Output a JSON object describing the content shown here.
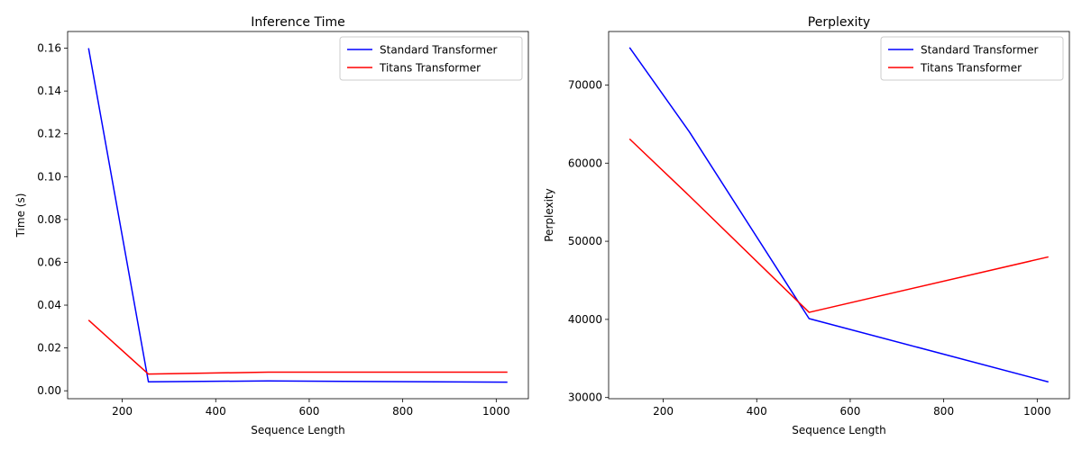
{
  "chart_data": [
    {
      "type": "line",
      "title": "Inference Time",
      "xlabel": "Sequence Length",
      "ylabel": "Time (s)",
      "x": [
        128,
        256,
        512,
        1024
      ],
      "xlim": [
        83.2,
        1068.8
      ],
      "ylim": [
        -0.0037,
        0.1678
      ],
      "xticks": [
        200,
        400,
        600,
        800,
        1000
      ],
      "yticks": [
        0.0,
        0.02,
        0.04,
        0.06,
        0.08,
        0.1,
        0.12,
        0.14,
        0.16
      ],
      "ytick_labels": [
        "0.00",
        "0.02",
        "0.04",
        "0.06",
        "0.08",
        "0.10",
        "0.12",
        "0.14",
        "0.16"
      ],
      "grid": false,
      "legend_position": "top-right",
      "series": [
        {
          "name": "Standard Transformer",
          "color": "#0000ff",
          "values": [
            0.16,
            0.0042,
            0.0046,
            0.004
          ]
        },
        {
          "name": "Titans Transformer",
          "color": "#ff0000",
          "values": [
            0.033,
            0.0078,
            0.0087,
            0.0087
          ]
        }
      ]
    },
    {
      "type": "line",
      "title": "Perplexity",
      "xlabel": "Sequence Length",
      "ylabel": "Perplexity",
      "x": [
        128,
        256,
        512,
        1024
      ],
      "xlim": [
        83.2,
        1068.8
      ],
      "ylim": [
        29850,
        76850
      ],
      "xticks": [
        200,
        400,
        600,
        800,
        1000
      ],
      "yticks": [
        30000,
        40000,
        50000,
        60000,
        70000
      ],
      "ytick_labels": [
        "30000",
        "40000",
        "50000",
        "60000",
        "70000"
      ],
      "grid": false,
      "legend_position": "top-right",
      "series": [
        {
          "name": "Standard Transformer",
          "color": "#0000ff",
          "values": [
            74800,
            64000,
            40100,
            32000
          ]
        },
        {
          "name": "Titans Transformer",
          "color": "#ff0000",
          "values": [
            63100,
            55800,
            40900,
            48000
          ]
        }
      ]
    }
  ]
}
